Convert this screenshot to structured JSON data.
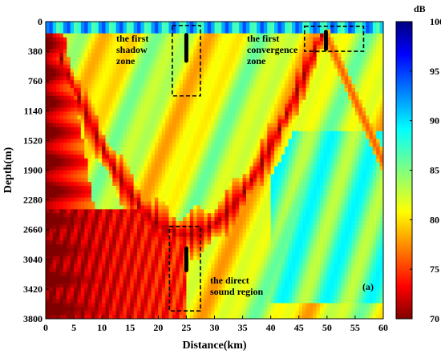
{
  "chart_data": {
    "type": "heatmap",
    "title": "",
    "panel_label": "(a)",
    "xlabel": "Distance(km)",
    "ylabel": "Depth(m)",
    "xlim": [
      0,
      60
    ],
    "ylim": [
      0,
      3800
    ],
    "x_ticks": [
      0,
      5,
      10,
      15,
      20,
      25,
      30,
      35,
      40,
      45,
      50,
      55,
      60
    ],
    "y_ticks": [
      0,
      380,
      760,
      1140,
      1520,
      1900,
      2280,
      2660,
      3040,
      3420,
      3800
    ],
    "y_inverted": true,
    "colorbar": {
      "label": "dB",
      "range": [
        70,
        100
      ],
      "ticks": [
        70,
        75,
        80,
        85,
        90,
        95,
        100
      ],
      "reversed_jet": true
    },
    "annotations": [
      {
        "lines": [
          "the first",
          "shadow",
          "zone"
        ],
        "box_x": [
          22.5,
          27.5
        ],
        "box_y": [
          50,
          950
        ],
        "marker": {
          "x": 25,
          "y": [
            170,
            500
          ]
        }
      },
      {
        "lines": [
          "the first",
          "convergence",
          "zone"
        ],
        "box_x": [
          46,
          56.5
        ],
        "box_y": [
          60,
          380
        ],
        "marker": {
          "x": 49.8,
          "y": [
            130,
            350
          ]
        }
      },
      {
        "lines": [
          "the direct",
          "sound region"
        ],
        "box_x": [
          22,
          27.5
        ],
        "box_y": [
          2620,
          3700
        ],
        "marker": {
          "x": 25,
          "y": [
            2900,
            3180
          ]
        }
      }
    ]
  }
}
